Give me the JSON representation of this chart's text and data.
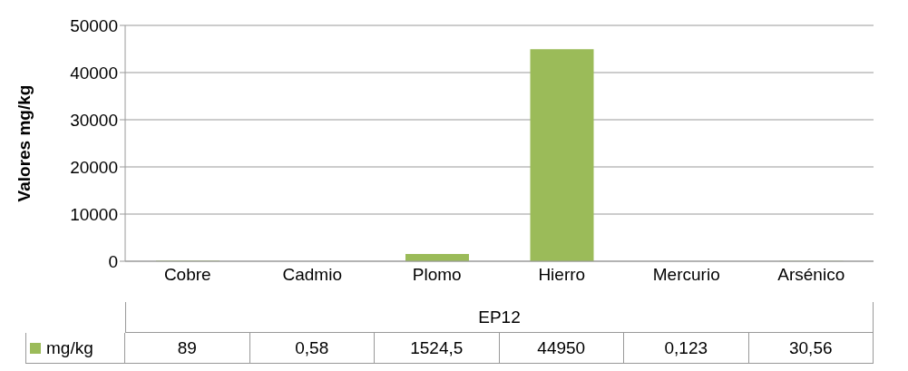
{
  "chart_data": {
    "type": "bar",
    "ylabel": "Valores mg/kg",
    "xlabel": "EP12",
    "categories": [
      "Cobre",
      "Cadmio",
      "Plomo",
      "Hierro",
      "Mercurio",
      "Arsénico"
    ],
    "series": [
      {
        "name": "mg/kg",
        "color": "#9bbb59",
        "values": [
          89,
          0.58,
          1524.5,
          44950,
          0.123,
          30.56
        ],
        "value_labels": [
          "89",
          "0,58",
          "1524,5",
          "44950",
          "0,123",
          "30,56"
        ]
      }
    ],
    "ylim": [
      0,
      50000
    ],
    "yticks": [
      0,
      10000,
      20000,
      30000,
      40000,
      50000
    ],
    "grid": "y",
    "legend": "bottom"
  }
}
